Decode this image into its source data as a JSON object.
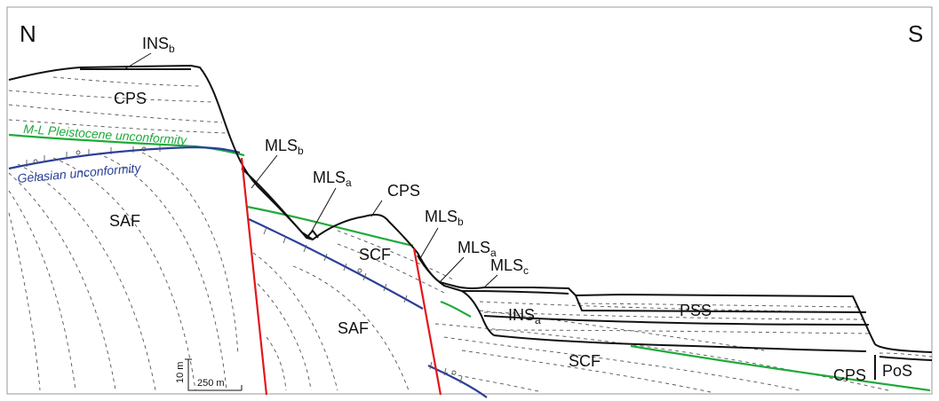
{
  "orientation": {
    "north": "N",
    "south": "S"
  },
  "units": {
    "ins_b": {
      "base": "INS",
      "sub": "b"
    },
    "cps_top": "CPS",
    "saf_left": "SAF",
    "mls_b_1": {
      "base": "MLS",
      "sub": "b"
    },
    "mls_a_1": {
      "base": "MLS",
      "sub": "a"
    },
    "cps_mid": "CPS",
    "mls_b_2": {
      "base": "MLS",
      "sub": "b"
    },
    "scf_mid": "SCF",
    "mls_a_2": {
      "base": "MLS",
      "sub": "a"
    },
    "mls_c": {
      "base": "MLS",
      "sub": "c"
    },
    "ins_a": {
      "base": "INS",
      "sub": "a"
    },
    "pss": "PSS",
    "saf_mid": "SAF",
    "scf_low": "SCF",
    "cps_right": "CPS",
    "pos": "PoS"
  },
  "unconformities": {
    "ml_pleistocene": "M-L Pleistocene unconformity",
    "gelasian": "Gelasian unconformity"
  },
  "scale": {
    "vertical": "10 m",
    "horizontal": "250 m"
  },
  "colors": {
    "green_unconformity": "#1faa3a",
    "blue_unconformity": "#2a3f9a",
    "fault": "#e3161b",
    "outline": "#111111",
    "bedding": "#555555"
  }
}
